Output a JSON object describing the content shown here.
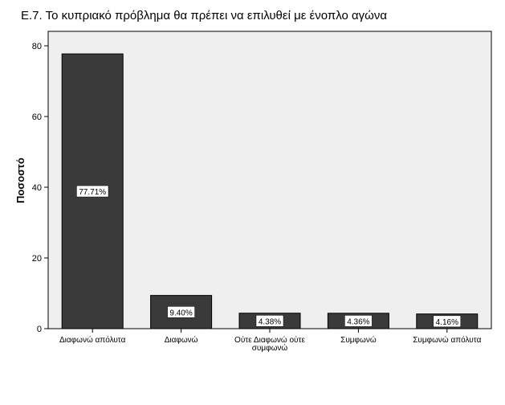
{
  "chart_data": {
    "type": "bar",
    "title": "Ε.7. Το κυπριακό πρόβλημα θα πρέπει να επιλυθεί με ένοπλο αγώνα",
    "ylabel": "Ποσοστό",
    "xlabel": "",
    "categories": [
      [
        "Διαφωνώ απόλυτα"
      ],
      [
        "Διαφωνώ"
      ],
      [
        "Ούτε Διαφωνώ ούτε",
        "συμφωνώ"
      ],
      [
        "Συμφωνώ"
      ],
      [
        "Συμφωνώ απόλυτα"
      ]
    ],
    "values": [
      77.71,
      9.4,
      4.38,
      4.36,
      4.16
    ],
    "data_labels": [
      "77.71%",
      "9.40%",
      "4.38%",
      "4.36%",
      "4.16%"
    ],
    "ylim": [
      0,
      80
    ],
    "yticks": [
      0,
      20,
      40,
      60,
      80
    ],
    "grid": false,
    "colors": {
      "bar": "#3a3a3a",
      "plot_background": "#efefef",
      "axis": "#000000"
    }
  }
}
